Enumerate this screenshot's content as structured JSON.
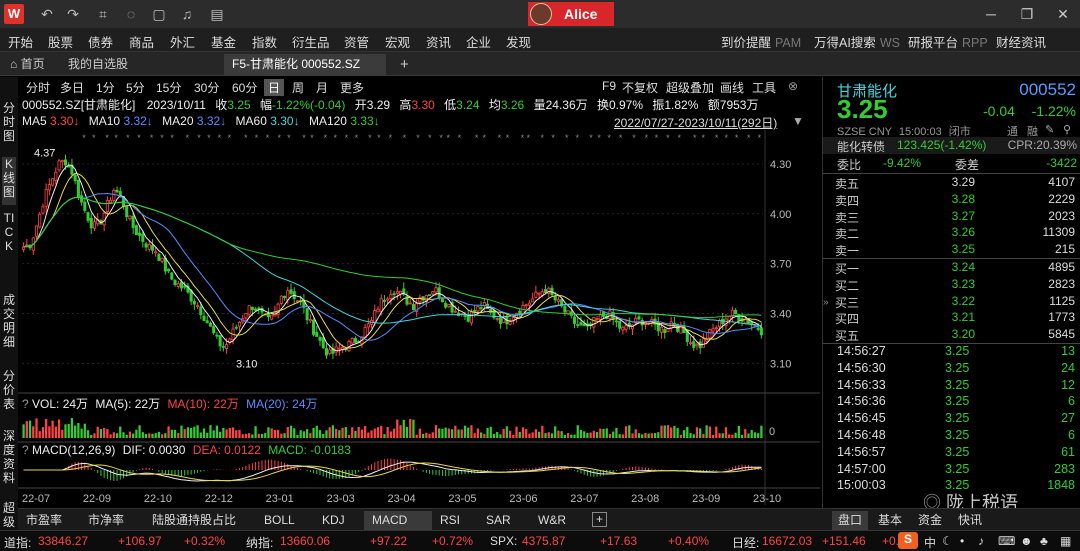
{
  "titlebar": {
    "logo": "W",
    "user": "Alice"
  },
  "menu": {
    "left": [
      "开始",
      "股票",
      "债券",
      "商品",
      "外汇",
      "基金",
      "指数",
      "衍生品",
      "资管",
      "宏观",
      "资讯",
      "企业",
      "发现"
    ],
    "right": [
      {
        "label": "到价提醒",
        "tag": "PAM"
      },
      {
        "label": "万得AI搜索",
        "tag": "WS"
      },
      {
        "label": "研报平台",
        "tag": "RPP"
      },
      {
        "label": "财经资讯",
        "tag": ""
      }
    ]
  },
  "tabs": {
    "home": "首页",
    "watchlist": "我的自选股",
    "active": "F5-甘肃能化 000552.SZ",
    "add": "+"
  },
  "left_vertical_tabs": [
    "分时图",
    "K线图",
    "TICK",
    "成交明细",
    "分价表",
    "深度资料",
    "超级"
  ],
  "periods": [
    "分时",
    "多日",
    "1分",
    "5分",
    "15分",
    "30分",
    "60分",
    "日",
    "周",
    "月",
    "更多"
  ],
  "active_period": "日",
  "toolbar_right": [
    "F9",
    "不复权",
    "超级叠加",
    "画线",
    "工具"
  ],
  "quote_header": {
    "code": "000552.SZ[甘肃能化]",
    "date": "2023/10/11",
    "close_label": "收",
    "close": "3.25",
    "change_label": "幅",
    "change": "-1.22%(-0.04)",
    "open_label": "开",
    "open": "3.29",
    "high_label": "高",
    "high": "3.30",
    "low_label": "低",
    "low": "3.24",
    "avg_label": "均",
    "avg": "3.26",
    "vol_label": "量",
    "vol": "24.36万",
    "turnover_label": "换",
    "turnover": "0.97%",
    "amp_label": "振",
    "amp": "1.82%",
    "amount_label": "额",
    "amount": "7953万"
  },
  "ma": {
    "ma5_label": "MA5",
    "ma5": "3.30↓",
    "ma10_label": "MA10",
    "ma10": "3.32↓",
    "ma20_label": "MA20",
    "ma20": "3.32↓",
    "ma60_label": "MA60",
    "ma60": "3.30↓",
    "ma120_label": "MA120",
    "ma120": "3.33↓",
    "range": "2022/07/27-2023/10/11(292日)"
  },
  "colors": {
    "up": "#ff4444",
    "down": "#33cc33",
    "ma5": "#eeeeee",
    "ma10": "#e8d84a",
    "ma20": "#ff5aff",
    "ma60": "#3ed8e0",
    "ma120": "#33cc33",
    "ma_blue": "#5b8cff"
  },
  "chart_data": {
    "type": "candlestick",
    "price_axis": [
      "4.30",
      "4.00",
      "3.70",
      "3.40",
      "3.10"
    ],
    "ylim": [
      3.0,
      4.42
    ],
    "max_label": "4.37",
    "min_label": "3.10",
    "x_ticks": [
      "22-07",
      "22-09",
      "22-10",
      "22-12",
      "23-01",
      "23-03",
      "23-04",
      "23-05",
      "23-06",
      "23-07",
      "23-08",
      "23-09",
      "23-10"
    ],
    "close_path": [
      3.8,
      3.82,
      3.95,
      4.1,
      4.2,
      4.3,
      4.32,
      4.25,
      4.1,
      4.0,
      3.92,
      3.95,
      4.05,
      4.15,
      4.1,
      3.98,
      3.9,
      3.85,
      3.8,
      3.78,
      3.7,
      3.62,
      3.58,
      3.55,
      3.5,
      3.45,
      3.38,
      3.3,
      3.22,
      3.2,
      3.28,
      3.35,
      3.42,
      3.45,
      3.4,
      3.35,
      3.38,
      3.5,
      3.55,
      3.5,
      3.45,
      3.35,
      3.28,
      3.2,
      3.15,
      3.18,
      3.2,
      3.22,
      3.25,
      3.3,
      3.35,
      3.45,
      3.5,
      3.55,
      3.52,
      3.48,
      3.45,
      3.5,
      3.52,
      3.55,
      3.5,
      3.45,
      3.42,
      3.4,
      3.38,
      3.42,
      3.45,
      3.4,
      3.38,
      3.35,
      3.38,
      3.42,
      3.45,
      3.48,
      3.52,
      3.55,
      3.5,
      3.45,
      3.4,
      3.35,
      3.32,
      3.3,
      3.35,
      3.38,
      3.4,
      3.35,
      3.3,
      3.32,
      3.35,
      3.36,
      3.34,
      3.32,
      3.3,
      3.35,
      3.32,
      3.28,
      3.22,
      3.2,
      3.25,
      3.3,
      3.34,
      3.38,
      3.4,
      3.38,
      3.36,
      3.33,
      3.3
    ]
  },
  "vol_header": {
    "label": "VOL: 24万",
    "ma5": "MA(5): 22万",
    "ma10": "MA(10): 22万",
    "ma20": "MA(20): 24万",
    "axis_zero": "0"
  },
  "macd_header": {
    "label": "MACD(12,26,9)",
    "dif": "DIF: 0.0030",
    "dea": "DEA: 0.0122",
    "macd": "MACD: -0.0183"
  },
  "indicators": [
    "市盈率",
    "市净率",
    "陆股通持股占比",
    "BOLL",
    "KDJ",
    "MACD",
    "RSI",
    "SAR",
    "W&R",
    "+"
  ],
  "active_indicator": "MACD",
  "right_panel": {
    "name": "甘肃能化",
    "code": "000552",
    "price": "3.25",
    "change": "-0.04",
    "change_pct": "-1.22%",
    "market": "SZSE",
    "currency": "CNY",
    "time": "15:00:03",
    "status": "闭市",
    "flag1": "通",
    "flag2": "融",
    "convert_label": "能化转债",
    "convert_value": "123.425(-1.42%)",
    "cpr": "CPR:20.39%",
    "weibi_label": "委比",
    "weibi": "-9.42%",
    "weicha_label": "委差",
    "weicha": "-3422",
    "asks": [
      {
        "label": "卖五",
        "price": "3.29",
        "vol": "4107"
      },
      {
        "label": "卖四",
        "price": "3.28",
        "vol": "2229"
      },
      {
        "label": "卖三",
        "price": "3.27",
        "vol": "2023"
      },
      {
        "label": "卖二",
        "price": "3.26",
        "vol": "11309"
      },
      {
        "label": "卖一",
        "price": "3.25",
        "vol": "215"
      }
    ],
    "bids": [
      {
        "label": "买一",
        "price": "3.24",
        "vol": "4895"
      },
      {
        "label": "买二",
        "price": "3.23",
        "vol": "2823"
      },
      {
        "label": "买三",
        "price": "3.22",
        "vol": "1125"
      },
      {
        "label": "买四",
        "price": "3.21",
        "vol": "1773"
      },
      {
        "label": "买五",
        "price": "3.20",
        "vol": "5845"
      }
    ],
    "ticks": [
      {
        "time": "14:56:27",
        "price": "3.25",
        "vol": "13"
      },
      {
        "time": "14:56:30",
        "price": "3.25",
        "vol": "24"
      },
      {
        "time": "14:56:33",
        "price": "3.25",
        "vol": "12"
      },
      {
        "time": "14:56:36",
        "price": "3.25",
        "vol": "6"
      },
      {
        "time": "14:56:45",
        "price": "3.25",
        "vol": "27"
      },
      {
        "time": "14:56:48",
        "price": "3.25",
        "vol": "6"
      },
      {
        "time": "14:56:57",
        "price": "3.25",
        "vol": "61"
      },
      {
        "time": "14:57:00",
        "price": "3.25",
        "vol": "283"
      },
      {
        "time": "15:00:03",
        "price": "3.25",
        "vol": "1848"
      }
    ],
    "tabs": [
      "盘口",
      "基本",
      "资金",
      "快讯"
    ],
    "watermark": "陇上税语"
  },
  "ticker": [
    {
      "name": "道指:",
      "value": "33846.27",
      "chg": "+106.97",
      "pct": "+0.32%"
    },
    {
      "name": "纳指:",
      "value": "13660.06",
      "chg": "+97.22",
      "pct": "+0.72%"
    },
    {
      "name": "SPX:",
      "value": "4375.87",
      "chg": "+17.63",
      "pct": "+0.40%"
    },
    {
      "name": "日经:",
      "value": "16672.03",
      "chg": "+151.46",
      "pct": "+0.9"
    }
  ],
  "ticker_tray": "中"
}
